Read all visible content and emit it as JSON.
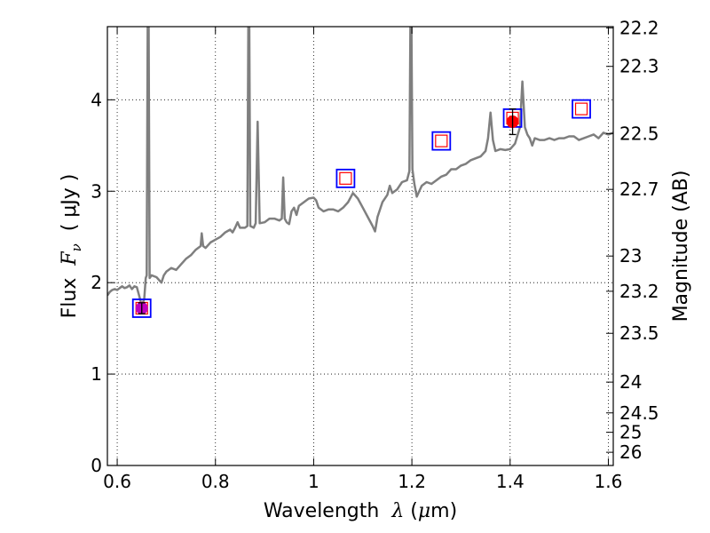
{
  "chart_data": {
    "type": "line",
    "xlabel": {
      "prefix": "Wavelength  ",
      "symbol": "λ",
      "units": " (μm)",
      "units_sym": "μ",
      "units_rest": "m)"
    },
    "ylabel": {
      "prefix": "Flux  ",
      "symbol": "F",
      "subscript": "ν",
      "units": "  ( μJy )"
    },
    "y2label": "Magnitude (AB)",
    "xlim": [
      0.58,
      1.61
    ],
    "ylim": [
      0,
      4.8
    ],
    "grid": true,
    "x_ticks": [
      {
        "value": 0.6,
        "label": "0.6"
      },
      {
        "value": 0.8,
        "label": "0.8"
      },
      {
        "value": 1.0,
        "label": "1"
      },
      {
        "value": 1.2,
        "label": "1.2"
      },
      {
        "value": 1.4,
        "label": "1.4"
      },
      {
        "value": 1.6,
        "label": "1.6"
      }
    ],
    "y_ticks": [
      {
        "value": 0,
        "label": "0"
      },
      {
        "value": 1,
        "label": "1"
      },
      {
        "value": 2,
        "label": "2"
      },
      {
        "value": 3,
        "label": "3"
      },
      {
        "value": 4,
        "label": "4"
      }
    ],
    "mag_ticks": [
      {
        "mag": 22.2,
        "label": "22.2"
      },
      {
        "mag": 22.3,
        "label": "22.3"
      },
      {
        "mag": 22.5,
        "label": "22.5"
      },
      {
        "mag": 22.7,
        "label": "22.7"
      },
      {
        "mag": 23,
        "label": "23"
      },
      {
        "mag": 23.2,
        "label": "23.2"
      },
      {
        "mag": 23.5,
        "label": "23.5"
      },
      {
        "mag": 24,
        "label": "24"
      },
      {
        "mag": 24.5,
        "label": "24.5"
      },
      {
        "mag": 25,
        "label": "25"
      },
      {
        "mag": 26,
        "label": "26"
      }
    ],
    "series": [
      {
        "type": "line",
        "color": "#7f7f7f",
        "points": [
          [
            0.58,
            1.86
          ],
          [
            0.585,
            1.9
          ],
          [
            0.59,
            1.92
          ],
          [
            0.595,
            1.93
          ],
          [
            0.6,
            1.92
          ],
          [
            0.605,
            1.94
          ],
          [
            0.61,
            1.96
          ],
          [
            0.615,
            1.94
          ],
          [
            0.62,
            1.95
          ],
          [
            0.625,
            1.97
          ],
          [
            0.63,
            1.93
          ],
          [
            0.635,
            1.96
          ],
          [
            0.64,
            1.95
          ],
          [
            0.645,
            1.85
          ],
          [
            0.65,
            1.75
          ],
          [
            0.655,
            1.82
          ],
          [
            0.658,
            2.05
          ],
          [
            0.66,
            2.08
          ],
          [
            0.662,
            4.8
          ],
          [
            0.664,
            4.8
          ],
          [
            0.666,
            2.05
          ],
          [
            0.67,
            2.08
          ],
          [
            0.68,
            2.06
          ],
          [
            0.69,
            2.0
          ],
          [
            0.695,
            2.08
          ],
          [
            0.7,
            2.12
          ],
          [
            0.71,
            2.16
          ],
          [
            0.72,
            2.14
          ],
          [
            0.73,
            2.2
          ],
          [
            0.74,
            2.26
          ],
          [
            0.75,
            2.3
          ],
          [
            0.76,
            2.36
          ],
          [
            0.77,
            2.4
          ],
          [
            0.772,
            2.54
          ],
          [
            0.775,
            2.4
          ],
          [
            0.78,
            2.38
          ],
          [
            0.79,
            2.44
          ],
          [
            0.8,
            2.47
          ],
          [
            0.81,
            2.5
          ],
          [
            0.82,
            2.55
          ],
          [
            0.83,
            2.58
          ],
          [
            0.835,
            2.55
          ],
          [
            0.84,
            2.6
          ],
          [
            0.845,
            2.66
          ],
          [
            0.85,
            2.6
          ],
          [
            0.86,
            2.6
          ],
          [
            0.865,
            2.62
          ],
          [
            0.867,
            4.8
          ],
          [
            0.869,
            4.8
          ],
          [
            0.871,
            2.62
          ],
          [
            0.878,
            2.6
          ],
          [
            0.882,
            2.65
          ],
          [
            0.886,
            3.76
          ],
          [
            0.89,
            2.65
          ],
          [
            0.9,
            2.66
          ],
          [
            0.91,
            2.7
          ],
          [
            0.92,
            2.7
          ],
          [
            0.93,
            2.68
          ],
          [
            0.935,
            2.7
          ],
          [
            0.938,
            3.15
          ],
          [
            0.941,
            2.7
          ],
          [
            0.945,
            2.66
          ],
          [
            0.95,
            2.64
          ],
          [
            0.955,
            2.78
          ],
          [
            0.96,
            2.82
          ],
          [
            0.965,
            2.74
          ],
          [
            0.97,
            2.84
          ],
          [
            0.98,
            2.88
          ],
          [
            0.99,
            2.92
          ],
          [
            1.0,
            2.93
          ],
          [
            1.005,
            2.9
          ],
          [
            1.01,
            2.82
          ],
          [
            1.02,
            2.78
          ],
          [
            1.03,
            2.8
          ],
          [
            1.04,
            2.8
          ],
          [
            1.05,
            2.78
          ],
          [
            1.06,
            2.82
          ],
          [
            1.07,
            2.88
          ],
          [
            1.08,
            2.98
          ],
          [
            1.09,
            2.92
          ],
          [
            1.1,
            2.82
          ],
          [
            1.11,
            2.72
          ],
          [
            1.12,
            2.62
          ],
          [
            1.125,
            2.56
          ],
          [
            1.13,
            2.72
          ],
          [
            1.14,
            2.88
          ],
          [
            1.15,
            2.96
          ],
          [
            1.155,
            3.06
          ],
          [
            1.16,
            2.98
          ],
          [
            1.17,
            3.02
          ],
          [
            1.18,
            3.1
          ],
          [
            1.19,
            3.12
          ],
          [
            1.195,
            3.22
          ],
          [
            1.197,
            4.8
          ],
          [
            1.199,
            4.8
          ],
          [
            1.201,
            3.24
          ],
          [
            1.205,
            3.08
          ],
          [
            1.21,
            2.94
          ],
          [
            1.22,
            3.06
          ],
          [
            1.23,
            3.1
          ],
          [
            1.24,
            3.08
          ],
          [
            1.25,
            3.12
          ],
          [
            1.26,
            3.16
          ],
          [
            1.27,
            3.18
          ],
          [
            1.28,
            3.24
          ],
          [
            1.29,
            3.24
          ],
          [
            1.3,
            3.28
          ],
          [
            1.31,
            3.3
          ],
          [
            1.32,
            3.34
          ],
          [
            1.33,
            3.36
          ],
          [
            1.34,
            3.38
          ],
          [
            1.35,
            3.44
          ],
          [
            1.355,
            3.58
          ],
          [
            1.36,
            3.86
          ],
          [
            1.365,
            3.56
          ],
          [
            1.37,
            3.44
          ],
          [
            1.38,
            3.46
          ],
          [
            1.39,
            3.45
          ],
          [
            1.4,
            3.46
          ],
          [
            1.41,
            3.52
          ],
          [
            1.42,
            3.7
          ],
          [
            1.425,
            4.2
          ],
          [
            1.43,
            3.7
          ],
          [
            1.435,
            3.62
          ],
          [
            1.44,
            3.58
          ],
          [
            1.445,
            3.5
          ],
          [
            1.45,
            3.58
          ],
          [
            1.46,
            3.56
          ],
          [
            1.47,
            3.56
          ],
          [
            1.48,
            3.58
          ],
          [
            1.49,
            3.56
          ],
          [
            1.5,
            3.58
          ],
          [
            1.51,
            3.58
          ],
          [
            1.52,
            3.6
          ],
          [
            1.53,
            3.6
          ],
          [
            1.54,
            3.56
          ],
          [
            1.55,
            3.58
          ],
          [
            1.56,
            3.6
          ],
          [
            1.57,
            3.62
          ],
          [
            1.58,
            3.58
          ],
          [
            1.59,
            3.64
          ],
          [
            1.6,
            3.62
          ],
          [
            1.61,
            3.64
          ]
        ]
      },
      {
        "type": "scatter",
        "marker": "open-square",
        "color": "#0000ff",
        "size": "large",
        "points": [
          [
            0.65,
            1.72
          ],
          [
            1.065,
            3.14
          ],
          [
            1.26,
            3.55
          ],
          [
            1.405,
            3.8
          ],
          [
            1.545,
            3.9
          ]
        ]
      },
      {
        "type": "scatter",
        "marker": "open-square",
        "color": "#ff0000",
        "size": "small",
        "points": [
          [
            0.65,
            1.72
          ],
          [
            1.065,
            3.14
          ],
          [
            1.26,
            3.55
          ],
          [
            1.405,
            3.8
          ],
          [
            1.545,
            3.9
          ]
        ]
      },
      {
        "type": "errorbar",
        "marker": "filled-circle",
        "color": "#ff0000",
        "points": [
          {
            "x": 0.65,
            "y": 1.72,
            "yerr": 0.06,
            "color": "#bf00bf"
          },
          {
            "x": 1.405,
            "y": 3.76,
            "yerr": 0.14,
            "color": "#ff0000"
          }
        ]
      }
    ]
  }
}
